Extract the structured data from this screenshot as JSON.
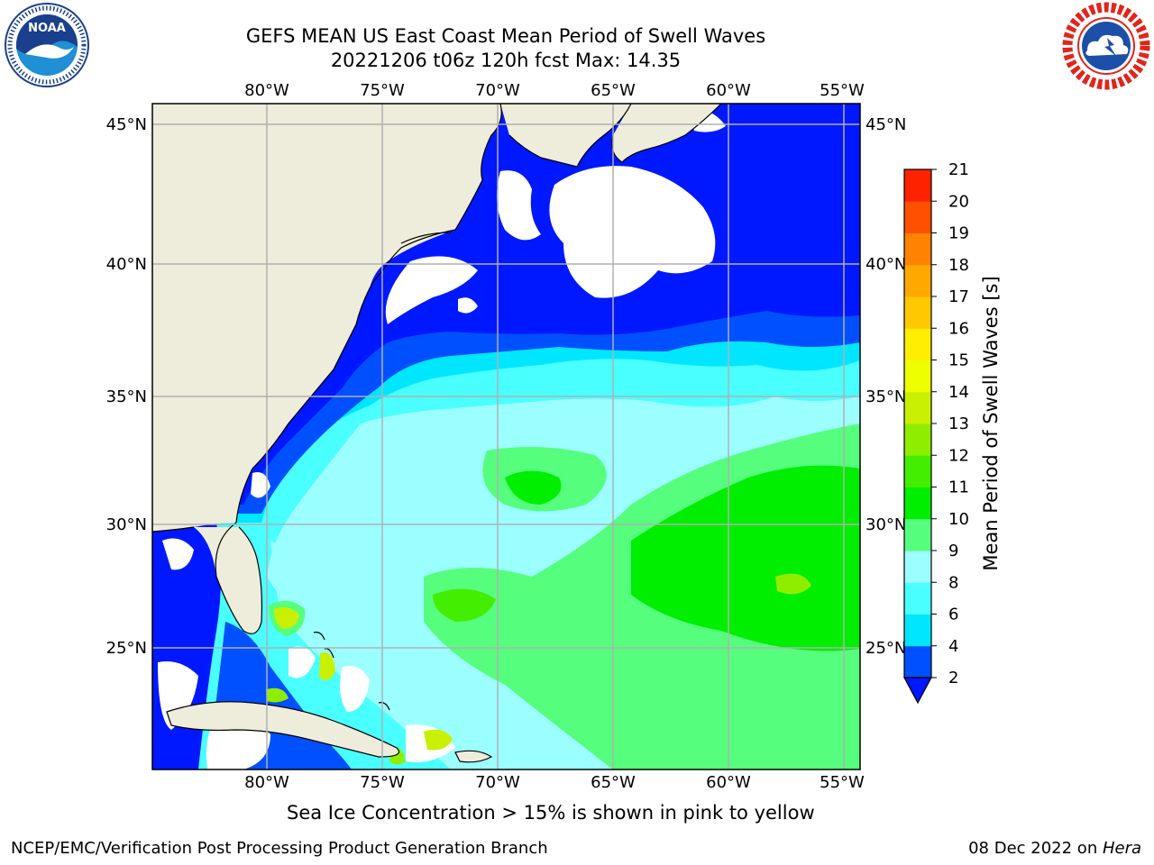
{
  "title": {
    "line1": "GEFS MEAN US East Coast Mean Period of Swell Waves",
    "line2": "20221206 t06z 120h fcst   Max: 14.35"
  },
  "map": {
    "lon_labels": [
      "80°W",
      "75°W",
      "70°W",
      "65°W",
      "60°W",
      "55°W"
    ],
    "lat_labels": [
      "45°N",
      "40°N",
      "35°N",
      "30°N",
      "25°N"
    ],
    "grid": true,
    "colors": {
      "land": "#eeecdb",
      "ocean_missing": "#ffffff",
      "coastline": "#000000",
      "gridline": "#b0b0b0"
    }
  },
  "colorbar": {
    "label": "Mean Period of Swell Waves [s]",
    "ticks": [
      "2",
      "4",
      "6",
      "8",
      "9",
      "10",
      "11",
      "12",
      "13",
      "14",
      "15",
      "16",
      "17",
      "18",
      "19",
      "20",
      "21"
    ],
    "colors": [
      "#0050ff",
      "#00e6ff",
      "#49ffff",
      "#9cffff",
      "#55ff7d",
      "#00ee00",
      "#44ee00",
      "#8fee00",
      "#c8f000",
      "#eeff00",
      "#ffee00",
      "#ffc800",
      "#ffa800",
      "#ff8200",
      "#ff5000",
      "#ff2200",
      "#ff0000"
    ],
    "under_color": "#0018ff"
  },
  "logos": {
    "noaa": {
      "text": "NOAA",
      "colors": {
        "top": "#1a3f8c",
        "bottom": "#1f8fd6",
        "gull": "#ffffff"
      }
    },
    "nws": {
      "colors": {
        "ring_text": "#e1251b",
        "inner": "#1c4fa8",
        "cloud": "#ffffff"
      }
    }
  },
  "footer": {
    "note": "Sea Ice Concentration > 15% is shown in pink to yellow",
    "credit": "NCEP/EMC/Verification Post Processing Product Generation Branch",
    "date_prefix": "08 Dec 2022 on ",
    "date_host": "Hera"
  }
}
